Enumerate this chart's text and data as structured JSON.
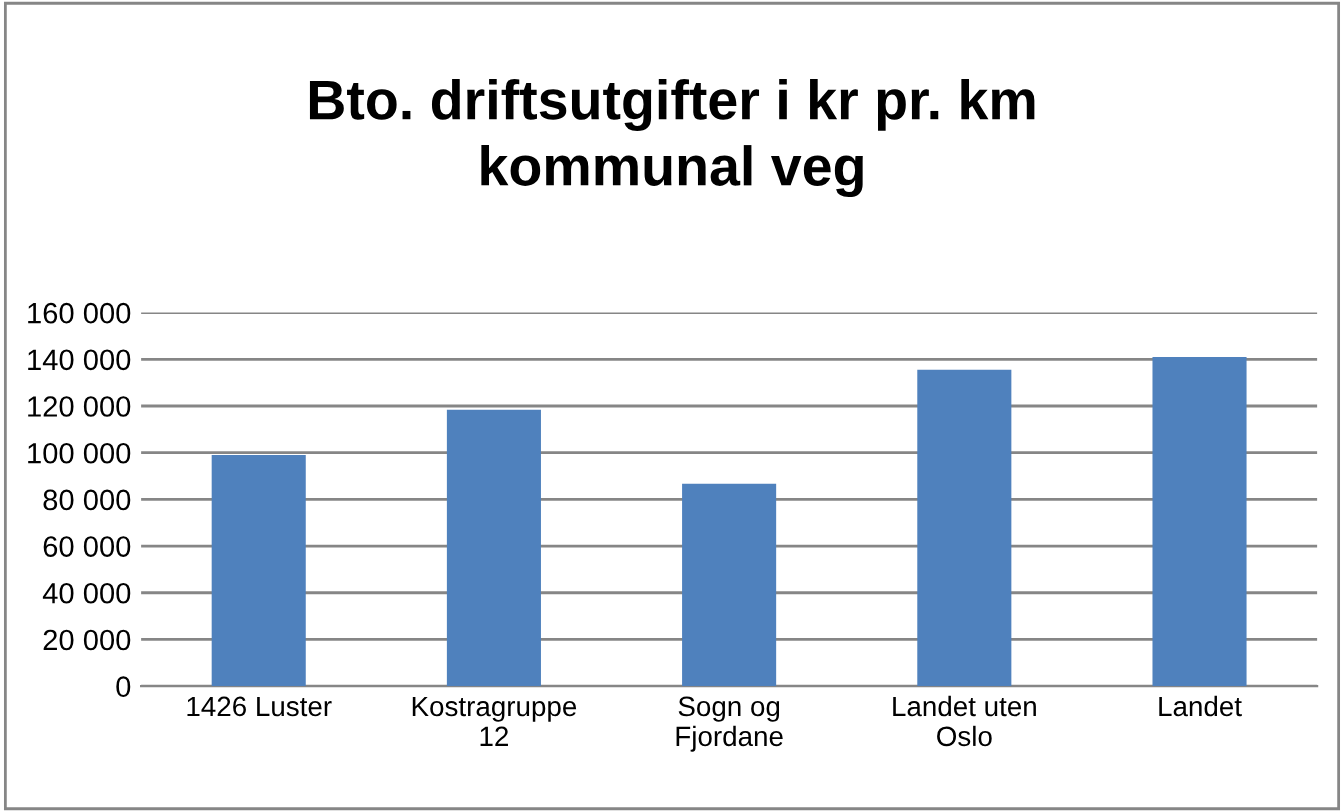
{
  "chart_data": {
    "type": "bar",
    "title": "Bto. driftsutgifter i kr pr. km\nkommunal veg",
    "categories": [
      "1426 Luster",
      "Kostragruppe\n12",
      "Sogn og\nFjordane",
      "Landet uten\nOslo",
      "Landet"
    ],
    "values": [
      99000,
      118400,
      86700,
      135500,
      141000
    ],
    "color": "#4f81bd",
    "ylim": [
      0,
      160000
    ],
    "yticks": [
      {
        "value": 0,
        "label": "0"
      },
      {
        "value": 20000,
        "label": "20 000"
      },
      {
        "value": 40000,
        "label": "40 000"
      },
      {
        "value": 60000,
        "label": "60 000"
      },
      {
        "value": 80000,
        "label": "80 000"
      },
      {
        "value": 100000,
        "label": "100 000"
      },
      {
        "value": 120000,
        "label": "120 000"
      },
      {
        "value": 140000,
        "label": "140 000"
      },
      {
        "value": 160000,
        "label": "160 000"
      }
    ],
    "grid": "y",
    "legend": false
  }
}
